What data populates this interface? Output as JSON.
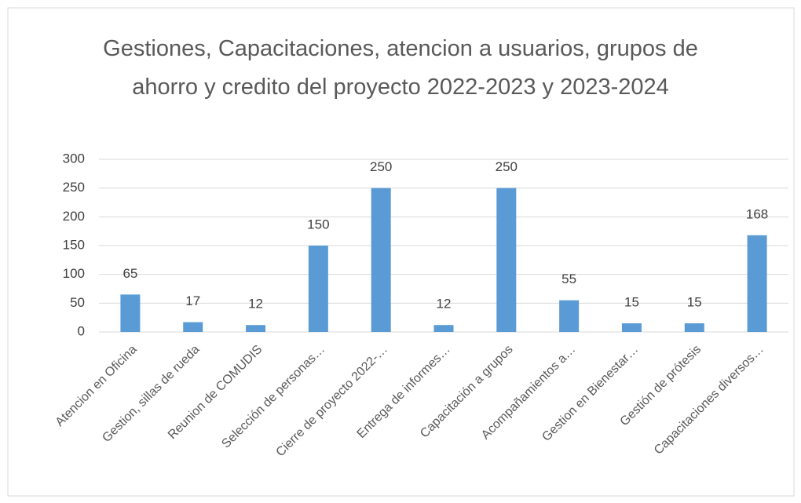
{
  "chart_data": {
    "type": "bar",
    "title": "Gestiones, Capacitaciones, atencion a usuarios, grupos de ahorro y credito del proyecto 2022-2023 y 2023-2024",
    "categories": [
      "Atencion en Oficina",
      "Gestion, sillas de rueda",
      "Reunion de COMUDIS",
      "Selección de personas…",
      "Cierre de proyecto 2022-…",
      "Entrega de informes…",
      "Capacitación a grupos",
      "Acompañamientos a…",
      "Gestion en Bienestar…",
      "Gestión de prótesis",
      "Capacitaciones diversos…"
    ],
    "values": [
      65,
      17,
      12,
      150,
      250,
      12,
      250,
      55,
      15,
      15,
      168
    ],
    "color": "#5b9bd5",
    "ylim": [
      0,
      300
    ],
    "yticks": [
      0,
      50,
      100,
      150,
      200,
      250,
      300
    ],
    "grid": true
  }
}
